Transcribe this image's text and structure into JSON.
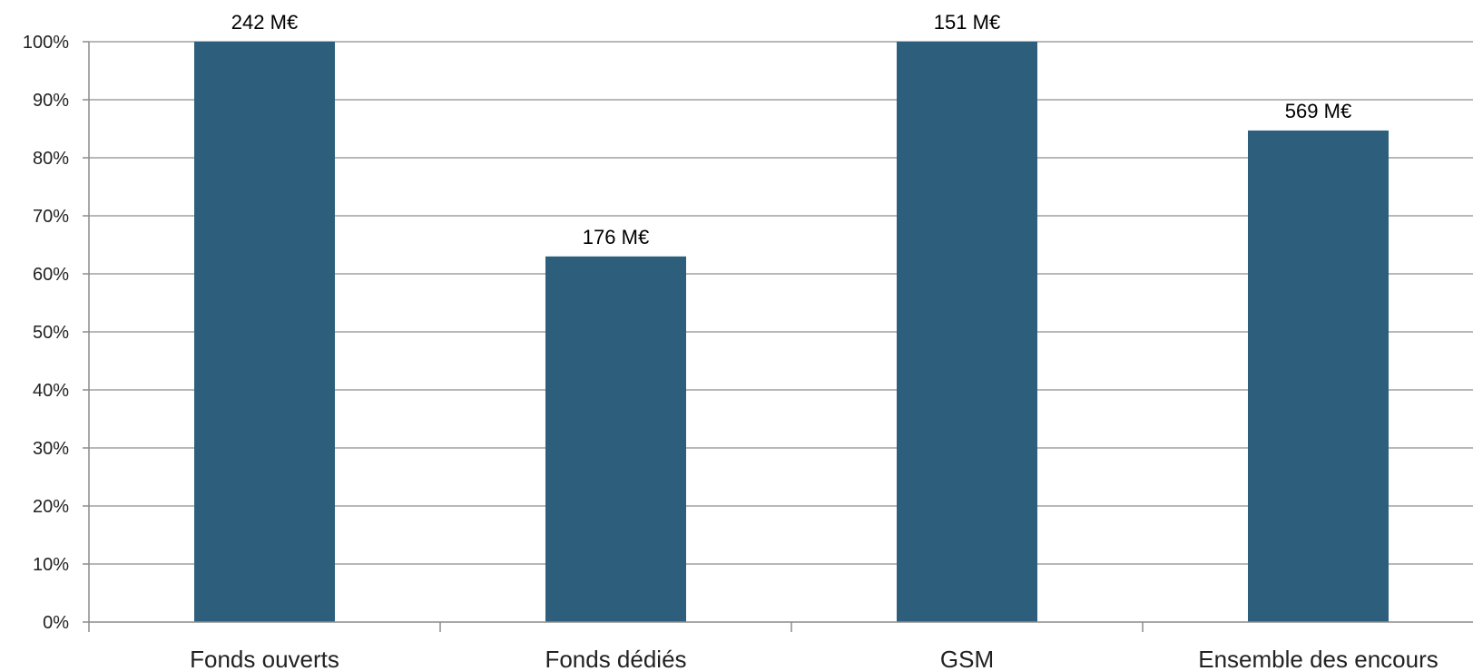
{
  "chart_data": {
    "type": "bar",
    "categories": [
      "Fonds ouverts",
      "Fonds dédiés",
      "GSM",
      "Ensemble des encours"
    ],
    "values": [
      100,
      63,
      100,
      84.7
    ],
    "data_labels": [
      "242 M€",
      "176 M€",
      "151 M€",
      "569 M€"
    ],
    "y_ticks": [
      "0%",
      "10%",
      "20%",
      "30%",
      "40%",
      "50%",
      "60%",
      "70%",
      "80%",
      "90%",
      "100%"
    ],
    "ylim": [
      0,
      100
    ],
    "y_unit": "%",
    "grid": true,
    "legend": "none",
    "title": "",
    "xlabel": "",
    "ylabel": ""
  },
  "colors": {
    "bar": "#2d5f7c",
    "grid": "#a0a0a0",
    "axis": "#8c8c8c"
  }
}
